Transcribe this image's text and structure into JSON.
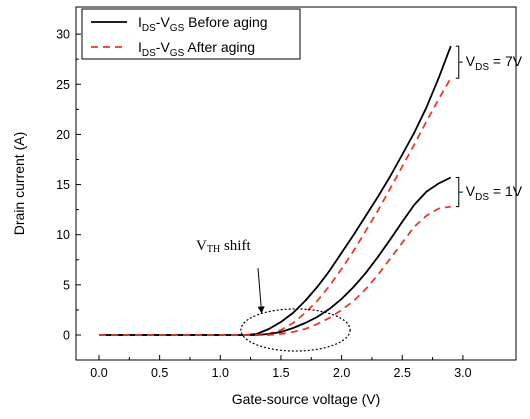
{
  "chart_data": {
    "type": "line",
    "xlabel": "Gate-source voltage (V)",
    "ylabel": "Drain current (A)",
    "xlim": [
      -0.1,
      3.1
    ],
    "ylim": [
      -1.5,
      32
    ],
    "xticks": [
      "0.0",
      "0.5",
      "1.0",
      "1.5",
      "2.0",
      "2.5",
      "3.0"
    ],
    "yticks": [
      "0",
      "5",
      "10",
      "15",
      "20",
      "25",
      "30"
    ],
    "grid": false,
    "legend_position": "top-left",
    "legend": [
      {
        "label": "IDS-VGS Before aging",
        "parts": [
          "I",
          "DS",
          "-V",
          "GS",
          " Before aging"
        ],
        "style": "solid",
        "color": "#000000"
      },
      {
        "label": "IDS-VGS After aging",
        "parts": [
          "I",
          "DS",
          "-V",
          "GS",
          " After aging"
        ],
        "style": "dashed",
        "color": "#e8392e"
      }
    ],
    "series": [
      {
        "group": "VDS = 7V",
        "style": "solid",
        "color": "#000000",
        "x": [
          0.0,
          1.2,
          1.3,
          1.4,
          1.5,
          1.6,
          1.7,
          1.8,
          1.9,
          2.0,
          2.1,
          2.2,
          2.3,
          2.4,
          2.5,
          2.6,
          2.7,
          2.8,
          2.9
        ],
        "y": [
          0.0,
          0.0,
          0.1,
          0.6,
          1.3,
          2.2,
          3.4,
          4.8,
          6.4,
          8.2,
          10.0,
          11.9,
          13.8,
          15.8,
          18.0,
          20.2,
          22.7,
          25.6,
          28.8
        ]
      },
      {
        "group": "VDS = 7V",
        "style": "dashed",
        "color": "#e8392e",
        "x": [
          0.0,
          1.3,
          1.4,
          1.5,
          1.6,
          1.7,
          1.8,
          1.9,
          2.0,
          2.1,
          2.2,
          2.3,
          2.4,
          2.5,
          2.6,
          2.7,
          2.8,
          2.9
        ],
        "y": [
          0.0,
          0.0,
          0.1,
          0.5,
          1.2,
          2.2,
          3.4,
          4.9,
          6.6,
          8.4,
          10.4,
          12.4,
          14.6,
          16.8,
          19.0,
          21.3,
          23.5,
          25.6
        ]
      },
      {
        "group": "VDS = 1V",
        "style": "solid",
        "color": "#000000",
        "x": [
          0.0,
          1.3,
          1.4,
          1.5,
          1.6,
          1.7,
          1.8,
          1.9,
          2.0,
          2.1,
          2.2,
          2.3,
          2.4,
          2.5,
          2.6,
          2.7,
          2.8,
          2.9
        ],
        "y": [
          0.0,
          0.0,
          0.1,
          0.3,
          0.7,
          1.2,
          1.8,
          2.6,
          3.6,
          4.8,
          6.2,
          7.8,
          9.5,
          11.3,
          13.0,
          14.3,
          15.1,
          15.7
        ]
      },
      {
        "group": "VDS = 1V",
        "style": "dashed",
        "color": "#e8392e",
        "x": [
          0.0,
          1.4,
          1.5,
          1.6,
          1.7,
          1.8,
          1.9,
          2.0,
          2.1,
          2.2,
          2.3,
          2.4,
          2.5,
          2.6,
          2.7,
          2.8,
          2.9
        ],
        "y": [
          0.0,
          0.0,
          0.1,
          0.3,
          0.6,
          1.1,
          1.7,
          2.5,
          3.4,
          4.6,
          6.0,
          7.6,
          9.2,
          10.8,
          11.9,
          12.6,
          12.8
        ]
      }
    ],
    "annotations": [
      {
        "label": "VDS = 7V",
        "parts": [
          "V",
          "DS",
          " = 7V"
        ],
        "bracket_y": [
          25.6,
          28.8
        ],
        "x": 2.9
      },
      {
        "label": "VDS = 1V",
        "parts": [
          "V",
          "DS",
          " = 1V"
        ],
        "bracket_y": [
          12.8,
          15.7
        ],
        "x": 2.9
      },
      {
        "label": "VTH shift",
        "parts": [
          "V",
          "TH",
          " shift"
        ],
        "ellipse_center": [
          1.62,
          0.5
        ],
        "ellipse_radii": [
          0.45,
          2.1
        ]
      }
    ]
  }
}
